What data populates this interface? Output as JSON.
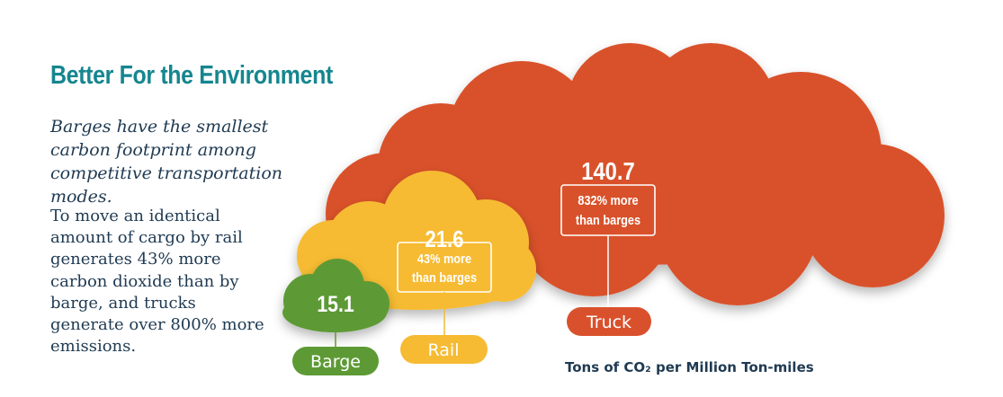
{
  "heading": "Better For the Environment",
  "subheading": "Barges have the smallest carbon footprint among competitive transportation modes.",
  "body": "To move an identical amount of cargo by rail generates 43% more carbon dioxide than by barge, and trucks generate over 800% more emissions.",
  "colors": {
    "heading": "#15868f",
    "text": "#1f3a52",
    "barge": "#5d9a35",
    "rail": "#f6bb33",
    "truck": "#d9512c"
  },
  "chart_data": {
    "type": "bubble",
    "title": "Tons of CO₂ per Million Ton-miles",
    "caption": "Tons of CO₂ per Million Ton-miles",
    "unit": "Tons of CO₂ per Million Ton-miles",
    "categories": [
      "Barge",
      "Rail",
      "Truck"
    ],
    "values": [
      15.1,
      21.6,
      140.7
    ],
    "items": [
      {
        "label": "Barge",
        "value": 15.1,
        "value_text": "15.1",
        "pct": "",
        "pct_line2": ""
      },
      {
        "label": "Rail",
        "value": 21.6,
        "value_text": "21.6",
        "pct": "43% more",
        "pct_line2": "than barges"
      },
      {
        "label": "Truck",
        "value": 140.7,
        "value_text": "140.7",
        "pct": "832% more",
        "pct_line2": "than barges"
      }
    ]
  }
}
